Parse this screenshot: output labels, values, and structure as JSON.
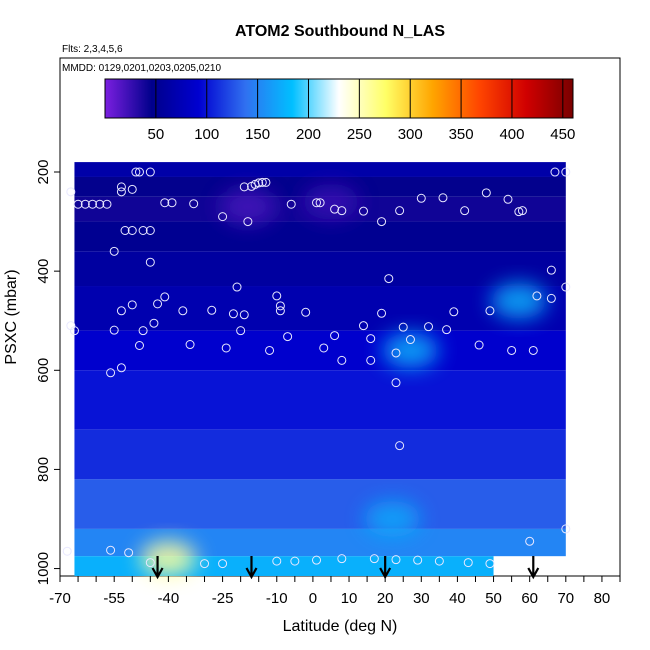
{
  "chart_data": {
    "type": "heatmap",
    "title": "ATOM2 Southbound N_LAS",
    "flights_note": "Flts: 2,3,4,5,6",
    "dates_note": "MMDD: 0129,0201,0203,0205,0210",
    "xlabel": "Latitude (deg N)",
    "ylabel": "PSXC (mbar)",
    "xlim": [
      -70,
      85
    ],
    "ylim": [
      1015,
      -30
    ],
    "x_ticks": [
      -70,
      -55,
      -40,
      -25,
      -10,
      0,
      10,
      20,
      30,
      40,
      50,
      60,
      70,
      80
    ],
    "y_ticks": [
      200,
      400,
      600,
      800,
      1000
    ],
    "colorbar": {
      "range": [
        0,
        460
      ],
      "ticks": [
        50,
        100,
        150,
        200,
        250,
        300,
        350,
        400,
        450
      ],
      "colors": [
        "#7b1fe0",
        "#00008b",
        "#0000d0",
        "#3070f0",
        "#00bfff",
        "#ffffff",
        "#ffff66",
        "#ffa500",
        "#ff4500",
        "#d00000",
        "#7a0000"
      ]
    },
    "arrows_x": [
      -43,
      -17,
      20,
      61
    ],
    "regions": [
      {
        "lat": [
          -66,
          70
        ],
        "p": [
          180,
          210
        ],
        "v": 65
      },
      {
        "lat": [
          -66,
          70
        ],
        "p": [
          210,
          250
        ],
        "v": 45
      },
      {
        "lat": [
          -66,
          70
        ],
        "p": [
          250,
          300
        ],
        "v": 40
      },
      {
        "lat": [
          -66,
          70
        ],
        "p": [
          300,
          360
        ],
        "v": 50
      },
      {
        "lat": [
          -66,
          70
        ],
        "p": [
          360,
          430
        ],
        "v": 60
      },
      {
        "lat": [
          -66,
          70
        ],
        "p": [
          430,
          520
        ],
        "v": 70
      },
      {
        "lat": [
          -66,
          70
        ],
        "p": [
          520,
          600
        ],
        "v": 90
      },
      {
        "lat": [
          -66,
          70
        ],
        "p": [
          600,
          720
        ],
        "v": 100
      },
      {
        "lat": [
          -66,
          70
        ],
        "p": [
          720,
          820
        ],
        "v": 110
      },
      {
        "lat": [
          -66,
          70
        ],
        "p": [
          820,
          920
        ],
        "v": 130
      },
      {
        "lat": [
          -66,
          70
        ],
        "p": [
          920,
          975
        ],
        "v": 150
      },
      {
        "lat": [
          -66,
          50
        ],
        "p": [
          975,
          1015
        ],
        "v": 175
      }
    ],
    "blobs": [
      {
        "lat": -18,
        "p": 270,
        "v": 20
      },
      {
        "lat": 5,
        "p": 260,
        "v": 25
      },
      {
        "lat": -40,
        "p": 980,
        "v": 260
      },
      {
        "lat": 22,
        "p": 900,
        "v": 170
      },
      {
        "lat": 27,
        "p": 560,
        "v": 175
      },
      {
        "lat": 57,
        "p": 460,
        "v": 175
      }
    ],
    "points": [
      [
        -67,
        240
      ],
      [
        -67,
        510
      ],
      [
        -66,
        520
      ],
      [
        -65,
        265
      ],
      [
        -63,
        265
      ],
      [
        -61,
        265
      ],
      [
        -59,
        265
      ],
      [
        -57,
        265
      ],
      [
        -49,
        200
      ],
      [
        -48,
        200
      ],
      [
        -45,
        200
      ],
      [
        -50,
        235
      ],
      [
        -53,
        230
      ],
      [
        -53,
        240
      ],
      [
        -52,
        318
      ],
      [
        -50,
        318
      ],
      [
        -47,
        318
      ],
      [
        -45,
        318
      ],
      [
        -41,
        262
      ],
      [
        -39,
        262
      ],
      [
        -33,
        264
      ],
      [
        -25,
        290
      ],
      [
        -19,
        230
      ],
      [
        -17,
        229
      ],
      [
        -16,
        225
      ],
      [
        -15,
        222
      ],
      [
        -14,
        221
      ],
      [
        -13,
        221
      ],
      [
        -18,
        300
      ],
      [
        -6,
        265
      ],
      [
        2,
        262
      ],
      [
        1,
        262
      ],
      [
        6,
        275
      ],
      [
        8,
        278
      ],
      [
        14,
        279
      ],
      [
        19,
        300
      ],
      [
        24,
        278
      ],
      [
        30,
        253
      ],
      [
        36,
        252
      ],
      [
        42,
        278
      ],
      [
        48,
        242
      ],
      [
        54,
        255
      ],
      [
        57,
        280
      ],
      [
        58,
        278
      ],
      [
        67,
        200
      ],
      [
        70,
        200
      ],
      [
        -55,
        360
      ],
      [
        -45,
        382
      ],
      [
        -21,
        432
      ],
      [
        -53,
        480
      ],
      [
        -50,
        468
      ],
      [
        -47,
        520
      ],
      [
        -43,
        466
      ],
      [
        -44,
        505
      ],
      [
        -48,
        550
      ],
      [
        -41,
        452
      ],
      [
        -36,
        480
      ],
      [
        -34,
        548
      ],
      [
        -28,
        479
      ],
      [
        -22,
        486
      ],
      [
        -19,
        488
      ],
      [
        -10,
        450
      ],
      [
        -9,
        470
      ],
      [
        -9,
        480
      ],
      [
        -7,
        532
      ],
      [
        -2,
        483
      ],
      [
        3,
        555
      ],
      [
        6,
        530
      ],
      [
        8,
        580
      ],
      [
        14,
        510
      ],
      [
        16,
        536
      ],
      [
        19,
        485
      ],
      [
        21,
        415
      ],
      [
        25,
        513
      ],
      [
        27,
        538
      ],
      [
        23,
        565
      ],
      [
        23,
        625
      ],
      [
        32,
        512
      ],
      [
        39,
        482
      ],
      [
        37,
        518
      ],
      [
        46,
        549
      ],
      [
        49,
        480
      ],
      [
        55,
        560
      ],
      [
        61,
        560
      ],
      [
        62,
        450
      ],
      [
        66,
        455
      ],
      [
        -55,
        519
      ],
      [
        -53,
        595
      ],
      [
        -56,
        605
      ],
      [
        -20,
        520
      ],
      [
        -12,
        560
      ],
      [
        -24,
        555
      ],
      [
        16,
        580
      ],
      [
        70,
        432
      ],
      [
        66,
        398
      ],
      [
        -56,
        963
      ],
      [
        -51,
        968
      ],
      [
        -45,
        988
      ],
      [
        -30,
        990
      ],
      [
        -25,
        990
      ],
      [
        -10,
        985
      ],
      [
        -5,
        985
      ],
      [
        1,
        983
      ],
      [
        8,
        980
      ],
      [
        17,
        980
      ],
      [
        23,
        982
      ],
      [
        29,
        983
      ],
      [
        35,
        985
      ],
      [
        43,
        988
      ],
      [
        49,
        990
      ],
      [
        -68,
        965
      ],
      [
        24,
        752
      ],
      [
        60,
        945
      ],
      [
        70,
        920
      ]
    ]
  }
}
